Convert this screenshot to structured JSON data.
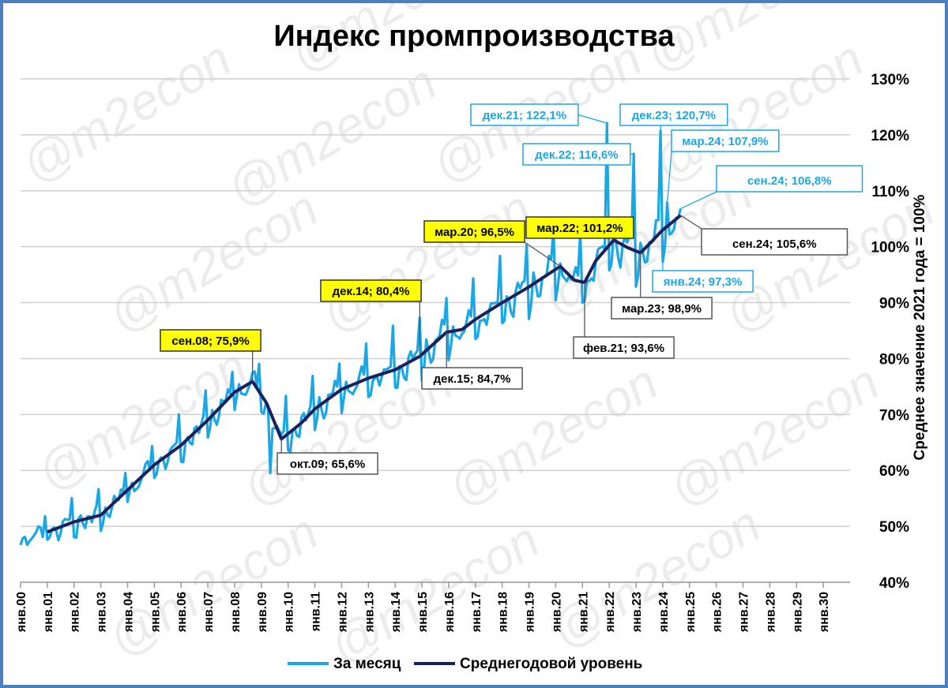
{
  "chart_data": {
    "type": "line",
    "title": "Индекс промпроизводства",
    "ylabel": "Среднее значение 2021 года = 100%",
    "ylim": [
      40,
      130
    ],
    "y_ticks": [
      "40%",
      "50%",
      "60%",
      "70%",
      "80%",
      "90%",
      "100%",
      "110%",
      "120%",
      "130%"
    ],
    "x_ticks": [
      "янв.00",
      "янв.01",
      "янв.02",
      "янв.03",
      "янв.04",
      "янв.05",
      "янв.06",
      "янв.07",
      "янв.08",
      "янв.09",
      "янв.10",
      "янв.11",
      "янв.12",
      "янв.13",
      "янв.14",
      "янв.15",
      "янв.16",
      "янв.17",
      "янв.18",
      "янв.19",
      "янв.20",
      "янв.21",
      "янв.22",
      "янв.23",
      "янв.24",
      "янв.25",
      "янв.26",
      "янв.27",
      "янв.28",
      "янв.29",
      "янв.30"
    ],
    "grid": true,
    "legend_position": "bottom",
    "series": [
      {
        "name": "За месяц",
        "color": "#1aa7e6",
        "seasonal_monthly_pattern": [
          -3.5,
          -2.5,
          0.5,
          -0.5,
          -1.5,
          -2.0,
          0.0,
          0.5,
          0.5,
          1.5,
          1.0,
          6.0
        ]
      },
      {
        "name": "Среднегодовой уровень",
        "color": "#1a1f5e",
        "points": [
          {
            "x": 2001.0,
            "y": 49.0
          },
          {
            "x": 2002.0,
            "y": 50.8
          },
          {
            "x": 2003.0,
            "y": 52.0
          },
          {
            "x": 2004.0,
            "y": 56.5
          },
          {
            "x": 2005.0,
            "y": 61.0
          },
          {
            "x": 2006.0,
            "y": 64.5
          },
          {
            "x": 2007.0,
            "y": 69.0
          },
          {
            "x": 2008.0,
            "y": 74.0
          },
          {
            "x": 2008.67,
            "y": 75.9
          },
          {
            "x": 2009.2,
            "y": 72.0
          },
          {
            "x": 2009.75,
            "y": 65.6
          },
          {
            "x": 2010.5,
            "y": 68.5
          },
          {
            "x": 2011.0,
            "y": 71.0
          },
          {
            "x": 2012.0,
            "y": 74.5
          },
          {
            "x": 2013.0,
            "y": 76.5
          },
          {
            "x": 2014.0,
            "y": 78.0
          },
          {
            "x": 2014.92,
            "y": 80.4
          },
          {
            "x": 2015.92,
            "y": 84.7
          },
          {
            "x": 2016.5,
            "y": 85.2
          },
          {
            "x": 2017.0,
            "y": 87.0
          },
          {
            "x": 2018.0,
            "y": 90.0
          },
          {
            "x": 2019.0,
            "y": 92.8
          },
          {
            "x": 2020.17,
            "y": 96.5
          },
          {
            "x": 2020.7,
            "y": 94.0
          },
          {
            "x": 2021.08,
            "y": 93.6
          },
          {
            "x": 2021.5,
            "y": 97.5
          },
          {
            "x": 2022.17,
            "y": 101.2
          },
          {
            "x": 2022.7,
            "y": 99.8
          },
          {
            "x": 2023.17,
            "y": 98.9
          },
          {
            "x": 2023.5,
            "y": 100.5
          },
          {
            "x": 2024.0,
            "y": 103.0
          },
          {
            "x": 2024.67,
            "y": 105.6
          }
        ]
      }
    ],
    "annotations": [
      {
        "text": "сен.08; 75,9%",
        "x": 2008.67,
        "y": 75.9,
        "style": "yellow"
      },
      {
        "text": "окт.09; 65,6%",
        "x": 2009.75,
        "y": 65.6,
        "style": "gray"
      },
      {
        "text": "дек.14; 80,4%",
        "x": 2014.92,
        "y": 80.4,
        "style": "yellow"
      },
      {
        "text": "дек.15; 84,7%",
        "x": 2015.92,
        "y": 84.7,
        "style": "gray"
      },
      {
        "text": "мар.20; 96,5%",
        "x": 2020.17,
        "y": 96.5,
        "style": "yellow"
      },
      {
        "text": "фев.21; 93,6%",
        "x": 2021.08,
        "y": 93.6,
        "style": "gray"
      },
      {
        "text": "мар.22; 101,2%",
        "x": 2022.17,
        "y": 101.2,
        "style": "yellow"
      },
      {
        "text": "мар.23; 98,9%",
        "x": 2023.17,
        "y": 98.9,
        "style": "gray"
      },
      {
        "text": "сен.24; 105,6%",
        "x": 2024.67,
        "y": 105.6,
        "style": "gray-big"
      },
      {
        "text": "дек.21; 122,1%",
        "x": 2021.92,
        "y": 122.1,
        "style": "blue"
      },
      {
        "text": "дек.22; 116,6%",
        "x": 2022.92,
        "y": 116.6,
        "style": "blue"
      },
      {
        "text": "дек.23; 120,7%",
        "x": 2023.92,
        "y": 120.7,
        "style": "blue"
      },
      {
        "text": "мар.24; 107,9%",
        "x": 2024.17,
        "y": 107.9,
        "style": "blue"
      },
      {
        "text": "янв.24; 97,3%",
        "x": 2024.0,
        "y": 97.3,
        "style": "blue"
      },
      {
        "text": "сен.24; 106,8%",
        "x": 2024.67,
        "y": 106.8,
        "style": "blue-big"
      }
    ],
    "watermark": "@m2econ"
  }
}
